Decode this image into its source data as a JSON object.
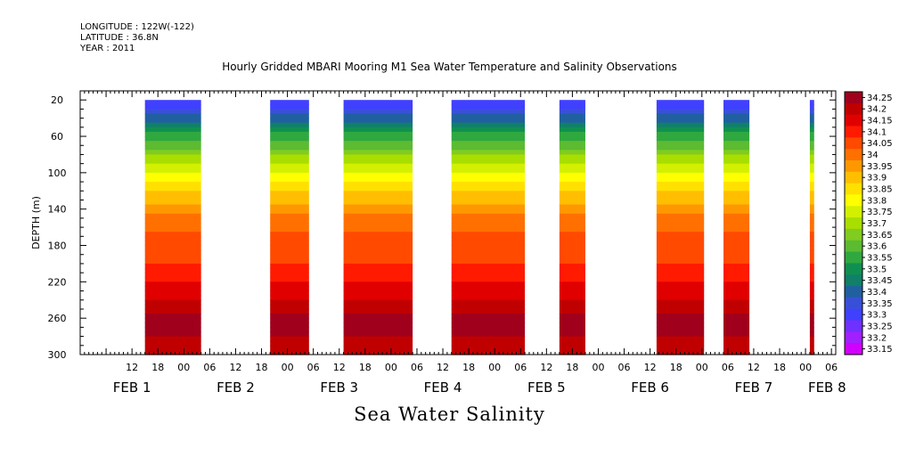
{
  "header": {
    "longitude": "LONGITUDE : 122W(-122)",
    "latitude": "LATITUDE : 36.8N",
    "year": "YEAR : 2011"
  },
  "chart_data": {
    "type": "heatmap",
    "title": "Hourly Gridded MBARI Mooring M1 Sea Water Temperature and Salinity Observations",
    "ylabel": "DEPTH (m)",
    "variable_label": "Sea Water Salinity",
    "ylim": [
      300,
      10
    ],
    "y_ticks": [
      20,
      60,
      100,
      140,
      180,
      220,
      260,
      300
    ],
    "x_axis_hours_range": [
      0,
      175
    ],
    "x_hour_ticks": [
      {
        "h": 12,
        "label": "12"
      },
      {
        "h": 18,
        "label": "18"
      },
      {
        "h": 24,
        "label": "00"
      },
      {
        "h": 30,
        "label": "06"
      },
      {
        "h": 36,
        "label": "12"
      },
      {
        "h": 42,
        "label": "18"
      },
      {
        "h": 48,
        "label": "00"
      },
      {
        "h": 54,
        "label": "06"
      },
      {
        "h": 60,
        "label": "12"
      },
      {
        "h": 66,
        "label": "18"
      },
      {
        "h": 72,
        "label": "00"
      },
      {
        "h": 78,
        "label": "06"
      },
      {
        "h": 84,
        "label": "12"
      },
      {
        "h": 90,
        "label": "18"
      },
      {
        "h": 96,
        "label": "00"
      },
      {
        "h": 102,
        "label": "06"
      },
      {
        "h": 108,
        "label": "12"
      },
      {
        "h": 114,
        "label": "18"
      },
      {
        "h": 120,
        "label": "00"
      },
      {
        "h": 126,
        "label": "06"
      },
      {
        "h": 132,
        "label": "12"
      },
      {
        "h": 138,
        "label": "18"
      },
      {
        "h": 144,
        "label": "00"
      },
      {
        "h": 150,
        "label": "06"
      },
      {
        "h": 156,
        "label": "12"
      },
      {
        "h": 162,
        "label": "18"
      },
      {
        "h": 168,
        "label": "00"
      },
      {
        "h": 174,
        "label": "06"
      }
    ],
    "day_labels": [
      {
        "h": 12,
        "label": "FEB  1"
      },
      {
        "h": 36,
        "label": "FEB  2"
      },
      {
        "h": 60,
        "label": "FEB  3"
      },
      {
        "h": 84,
        "label": "FEB  4"
      },
      {
        "h": 108,
        "label": "FEB  5"
      },
      {
        "h": 132,
        "label": "FEB  6"
      },
      {
        "h": 156,
        "label": "FEB  7"
      },
      {
        "h": 173,
        "label": "FEB  8"
      }
    ],
    "colorbar_levels": [
      "34.25",
      "34.2",
      "34.15",
      "34.1",
      "34.05",
      "34",
      "33.95",
      "33.9",
      "33.85",
      "33.8",
      "33.75",
      "33.7",
      "33.65",
      "33.6",
      "33.55",
      "33.5",
      "33.45",
      "33.4",
      "33.35",
      "33.3",
      "33.25",
      "33.2",
      "33.15"
    ],
    "colorbar_colors": [
      "#a0001c",
      "#c00000",
      "#e00000",
      "#ff1a00",
      "#ff4a00",
      "#ff7000",
      "#ff9800",
      "#ffbf00",
      "#ffe000",
      "#ffff00",
      "#d2f000",
      "#a8de00",
      "#80cc20",
      "#5cbb30",
      "#30a840",
      "#109050",
      "#108068",
      "#2060a0",
      "#3850d8",
      "#4040ff",
      "#7030ff",
      "#a020ff",
      "#d000ff"
    ],
    "data_segments": [
      {
        "start_h": 15,
        "end_h": 28
      },
      {
        "start_h": 44,
        "end_h": 53
      },
      {
        "start_h": 61,
        "end_h": 77
      },
      {
        "start_h": 86,
        "end_h": 103
      },
      {
        "start_h": 111,
        "end_h": 117
      },
      {
        "start_h": 133.5,
        "end_h": 144.5
      },
      {
        "start_h": 149,
        "end_h": 155
      },
      {
        "start_h": 169,
        "end_h": 170
      },
      {
        "start_h": 175,
        "end_h": 177
      }
    ],
    "profile": [
      {
        "depth": 20,
        "value": 33.25
      },
      {
        "depth": 40,
        "value": 33.38
      },
      {
        "depth": 60,
        "value": 33.52
      },
      {
        "depth": 80,
        "value": 33.64
      },
      {
        "depth": 100,
        "value": 33.76
      },
      {
        "depth": 120,
        "value": 33.84
      },
      {
        "depth": 140,
        "value": 33.93
      },
      {
        "depth": 160,
        "value": 33.99
      },
      {
        "depth": 180,
        "value": 34.02
      },
      {
        "depth": 200,
        "value": 34.05
      },
      {
        "depth": 220,
        "value": 34.1
      },
      {
        "depth": 240,
        "value": 34.15
      },
      {
        "depth": 260,
        "value": 34.21
      },
      {
        "depth": 280,
        "value": 34.2
      },
      {
        "depth": 300,
        "value": 34.18
      }
    ]
  }
}
